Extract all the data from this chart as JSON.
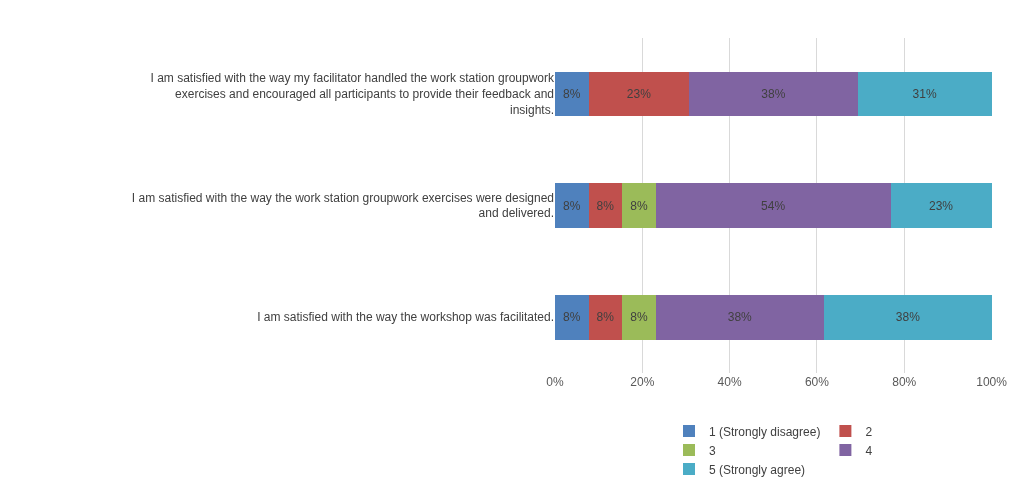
{
  "chart_data": {
    "type": "bar",
    "orientation": "horizontal",
    "stacked": true,
    "categories": [
      "I am satisfied with the way my facilitator handled the work station groupwork exercises and encouraged all participants to provide their feedback and insights.",
      "I am satisfied with the way the work station groupwork exercises were designed and delivered.",
      "I am satisfied with the way the workshop was facilitated."
    ],
    "series": [
      {
        "name": "1 (Strongly disagree)",
        "color": "#4f81bd",
        "values": [
          7.7,
          7.7,
          7.7
        ],
        "value_labels": [
          "8%",
          "8%",
          "8%"
        ]
      },
      {
        "name": "2",
        "color": "#c0504d",
        "values": [
          23.1,
          7.7,
          7.7
        ],
        "value_labels": [
          "23%",
          "8%",
          "8%"
        ]
      },
      {
        "name": "3",
        "color": "#9bbb59",
        "values": [
          null,
          7.7,
          7.7
        ],
        "value_labels": [
          null,
          "8%",
          "8%"
        ]
      },
      {
        "name": "4",
        "color": "#8064a2",
        "values": [
          38.5,
          53.8,
          38.5
        ],
        "value_labels": [
          "38%",
          "54%",
          "38%"
        ]
      },
      {
        "name": "5 (Strongly agree)",
        "color": "#4bacc6",
        "values": [
          30.8,
          23.1,
          38.5
        ],
        "value_labels": [
          "31%",
          "23%",
          "38%"
        ]
      }
    ],
    "xlim": [
      0,
      100.1
    ],
    "xticks": [
      {
        "value": 0,
        "label": "0%"
      },
      {
        "value": 20,
        "label": "20%"
      },
      {
        "value": 40,
        "label": "40%"
      },
      {
        "value": 60,
        "label": "60%"
      },
      {
        "value": 80,
        "label": "80%"
      },
      {
        "value": 100,
        "label": "100%"
      }
    ],
    "grid": "x",
    "legend": "bottom"
  }
}
